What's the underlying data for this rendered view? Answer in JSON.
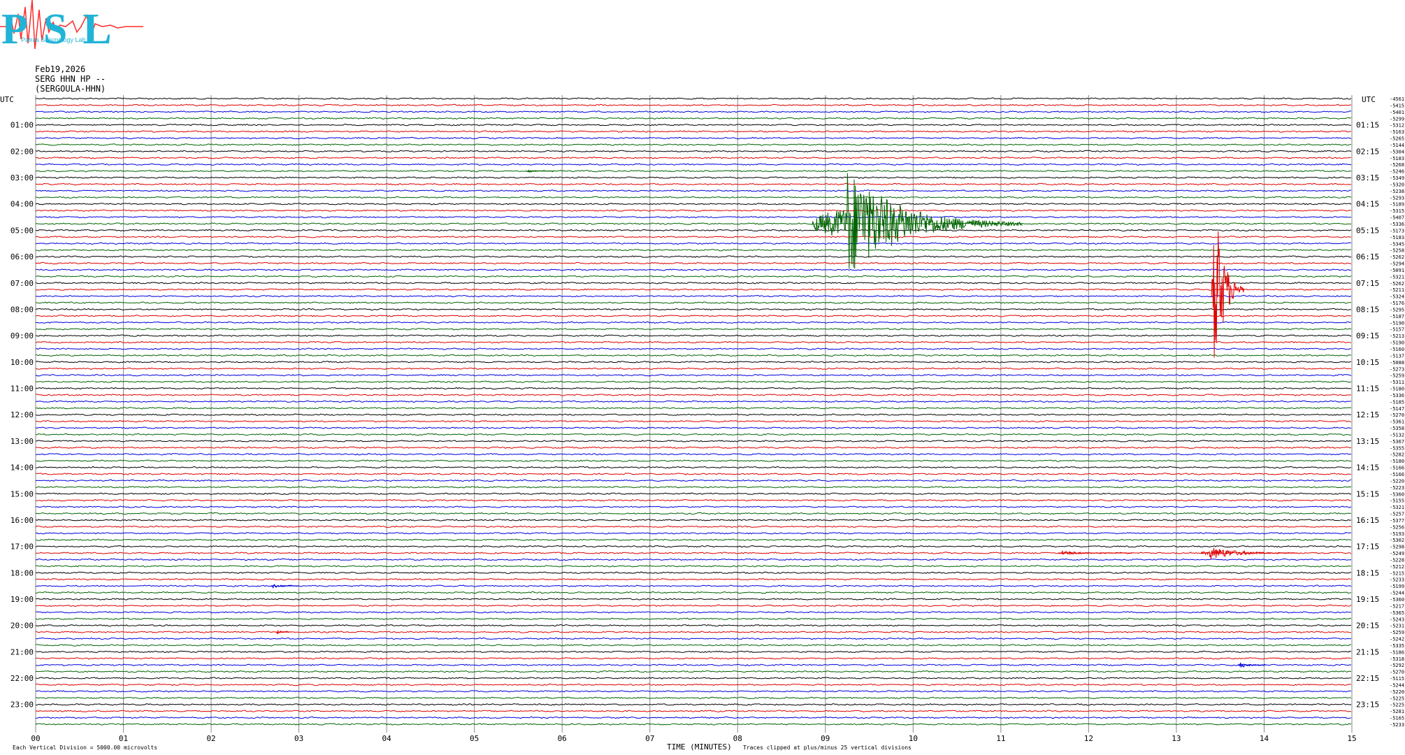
{
  "header": {
    "logo_text": "PSL",
    "logo_subtitle": "Patras Seismology Lab",
    "date": "Feb19,2026",
    "station_line": "SERG HHN HP --",
    "station_name": "(SERGOULA-HHN)"
  },
  "chart_data": {
    "type": "line",
    "xlabel": "TIME (MINUTES)",
    "x_ticks": [
      "00",
      "01",
      "02",
      "03",
      "04",
      "05",
      "06",
      "07",
      "08",
      "09",
      "10",
      "11",
      "12",
      "13",
      "14",
      "15"
    ],
    "xlim": [
      0,
      15
    ],
    "left_axis_title": "UTC",
    "right_axis_title": "UTC",
    "left_hour_labels": [
      "01:00",
      "02:00",
      "03:00",
      "04:00",
      "05:00",
      "06:00",
      "07:00",
      "08:00",
      "09:00",
      "10:00",
      "11:00",
      "12:00",
      "13:00",
      "14:00",
      "15:00",
      "16:00",
      "17:00",
      "18:00",
      "19:00",
      "20:00",
      "21:00",
      "22:00",
      "23:00"
    ],
    "right_hour_labels": [
      "01:15",
      "02:15",
      "03:15",
      "04:15",
      "05:15",
      "06:15",
      "07:15",
      "08:15",
      "09:15",
      "10:15",
      "11:15",
      "12:15",
      "13:15",
      "14:15",
      "15:15",
      "16:15",
      "17:15",
      "18:15",
      "19:15",
      "20:15",
      "21:15",
      "22:15",
      "23:15"
    ],
    "traces_per_hour": 4,
    "trace_count": 96,
    "trace_colors": [
      "#000000",
      "#e00000",
      "#0000e0",
      "#006400"
    ],
    "trace_offsets": [
      "-4561",
      "-5415",
      "-5401",
      "-5299",
      "-5312",
      "-5163",
      "-5265",
      "-5144",
      "-5304",
      "-5183",
      "-5268",
      "-5246",
      "-5349",
      "-5320",
      "-5238",
      "-5293",
      "-5189",
      "-5315",
      "-5407",
      "-5336",
      "-5173",
      "-5183",
      "-5345",
      "-5258",
      "-5262",
      "-5294",
      "-5091",
      "-5321",
      "-5262",
      "-5211",
      "-5324",
      "-5176",
      "-5295",
      "-5187",
      "-5190",
      "-5157",
      "-5213",
      "-5190",
      "-5160",
      "-5137",
      "-5088",
      "-5273",
      "-5259",
      "-5311",
      "-5180",
      "-5336",
      "-5185",
      "-5147",
      "-5270",
      "-5361",
      "-5358",
      "-5132",
      "-5367",
      "-5355",
      "-5282",
      "-5180",
      "-5166",
      "-5166",
      "-5220",
      "-5223",
      "-5360",
      "-5155",
      "-5321",
      "-5257",
      "-5377",
      "-5256",
      "-5193",
      "-5302",
      "-5298",
      "-5249",
      "-5228",
      "-5212",
      "-5215",
      "-5233",
      "-5199",
      "-5244",
      "-5360",
      "-5217",
      "-5365",
      "-5243",
      "-5231",
      "-5259",
      "-5242",
      "-5335",
      "-5186",
      "-5318",
      "-5292",
      "-5270",
      "-5115",
      "-5244",
      "-5220",
      "-5225",
      "-5225",
      "-5281",
      "-5165",
      "-5233"
    ],
    "events": [
      {
        "trace": 19,
        "minute": 9.25,
        "amplitude": 2.8,
        "duration_min": 2.0,
        "pre_min": 0.4
      },
      {
        "trace": 29,
        "minute": 13.42,
        "amplitude": 5.5,
        "duration_min": 0.35,
        "pre_min": 0.02
      },
      {
        "trace": 69,
        "minute": 13.38,
        "amplitude": 0.35,
        "duration_min": 1.0,
        "pre_min": 0.1
      },
      {
        "trace": 69,
        "minute": 11.7,
        "amplitude": 0.12,
        "duration_min": 0.8,
        "pre_min": 0.05
      },
      {
        "trace": 86,
        "minute": 13.72,
        "amplitude": 0.18,
        "duration_min": 0.3,
        "pre_min": 0.02
      },
      {
        "trace": 74,
        "minute": 2.7,
        "amplitude": 0.12,
        "duration_min": 0.3,
        "pre_min": 0.02
      },
      {
        "trace": 81,
        "minute": 2.75,
        "amplitude": 0.12,
        "duration_min": 0.15,
        "pre_min": 0.02
      },
      {
        "trace": 11,
        "minute": 5.6,
        "amplitude": 0.08,
        "duration_min": 0.3,
        "pre_min": 0.02
      }
    ],
    "clip_note": "Traces clipped at plus/minus 25 vertical divisions",
    "scale_note": "Each Vertical Division = 5000.00 microvolts"
  }
}
